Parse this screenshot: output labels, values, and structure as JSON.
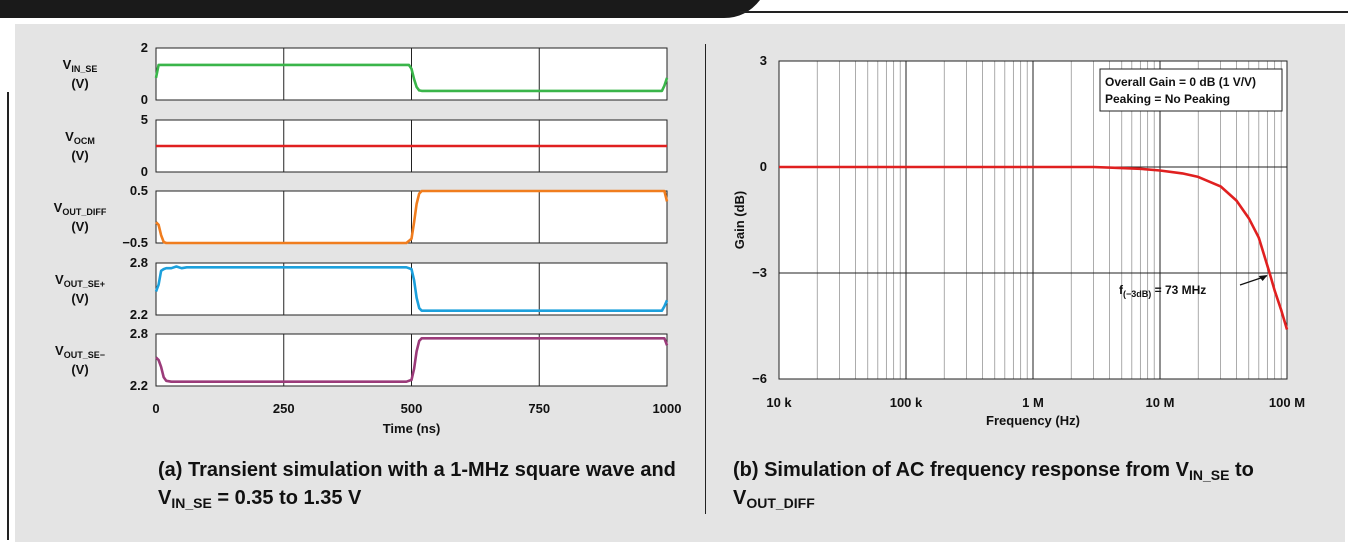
{
  "chart_data": [
    {
      "type": "line",
      "panel": "a",
      "xlabel": "Time (ns)",
      "xlim": [
        0,
        1000
      ],
      "xticks": [
        "0",
        "250",
        "500",
        "750",
        "1000"
      ],
      "xtick_values": [
        0,
        250,
        500,
        750,
        1000
      ],
      "subplots": [
        {
          "name": "V_IN_SE",
          "label_main": "V",
          "label_sub": "IN_SE",
          "unit": "(V)",
          "color": "#3ab54a",
          "ylim": [
            0,
            2
          ],
          "yticks": [
            "0",
            "2"
          ],
          "ytick_values": [
            0,
            2
          ],
          "x": [
            0,
            5,
            10,
            20,
            60,
            100,
            150,
            200,
            250,
            300,
            350,
            400,
            450,
            495,
            500,
            505,
            510,
            515,
            520,
            600,
            700,
            800,
            900,
            990,
            995,
            1000
          ],
          "y": [
            0.85,
            1.35,
            1.35,
            1.35,
            1.35,
            1.35,
            1.35,
            1.35,
            1.35,
            1.35,
            1.35,
            1.35,
            1.35,
            1.35,
            1.2,
            0.8,
            0.5,
            0.37,
            0.35,
            0.35,
            0.35,
            0.35,
            0.35,
            0.35,
            0.55,
            0.85
          ]
        },
        {
          "name": "V_OCM",
          "label_main": "V",
          "label_sub": "OCM",
          "unit": "(V)",
          "color": "#e02020",
          "ylim": [
            0,
            5
          ],
          "yticks": [
            "0",
            "5"
          ],
          "ytick_values": [
            0,
            5
          ],
          "x": [
            0,
            1000
          ],
          "y": [
            2.5,
            2.5
          ]
        },
        {
          "name": "V_OUT_DIFF",
          "label_main": "V",
          "label_sub": "OUT_DIFF",
          "unit": "(V)",
          "color": "#f07d1e",
          "ylim": [
            -0.5,
            0.5
          ],
          "yticks": [
            "−0.5",
            "0.5"
          ],
          "ytick_values": [
            -0.5,
            0.5
          ],
          "x": [
            0,
            5,
            10,
            15,
            20,
            30,
            100,
            200,
            300,
            400,
            490,
            500,
            505,
            510,
            515,
            520,
            530,
            600,
            700,
            800,
            900,
            995,
            1000
          ],
          "y": [
            -0.1,
            -0.15,
            -0.35,
            -0.48,
            -0.5,
            -0.5,
            -0.5,
            -0.5,
            -0.5,
            -0.5,
            -0.5,
            -0.42,
            -0.1,
            0.25,
            0.45,
            0.5,
            0.5,
            0.5,
            0.5,
            0.5,
            0.5,
            0.5,
            0.3
          ]
        },
        {
          "name": "V_OUT_SE+",
          "label_main": "V",
          "label_sub": "OUT_SE+",
          "unit": "(V)",
          "color": "#1ca0dc",
          "ylim": [
            2.2,
            2.8
          ],
          "yticks": [
            "2.2",
            "2.8"
          ],
          "ytick_values": [
            2.2,
            2.8
          ],
          "x": [
            0,
            5,
            10,
            15,
            20,
            30,
            40,
            50,
            60,
            100,
            200,
            300,
            400,
            490,
            500,
            505,
            510,
            515,
            520,
            530,
            600,
            700,
            800,
            900,
            990,
            995,
            1000
          ],
          "y": [
            2.47,
            2.55,
            2.71,
            2.73,
            2.74,
            2.74,
            2.76,
            2.74,
            2.75,
            2.75,
            2.75,
            2.75,
            2.75,
            2.75,
            2.73,
            2.6,
            2.4,
            2.28,
            2.25,
            2.25,
            2.25,
            2.25,
            2.25,
            2.25,
            2.25,
            2.3,
            2.37
          ]
        },
        {
          "name": "V_OUT_SE−",
          "label_main": "V",
          "label_sub": "OUT_SE−",
          "unit": "(V)",
          "color": "#9b3b7a",
          "ylim": [
            2.2,
            2.8
          ],
          "yticks": [
            "2.2",
            "2.8"
          ],
          "ytick_values": [
            2.2,
            2.8
          ],
          "x": [
            0,
            5,
            10,
            15,
            20,
            30,
            100,
            200,
            300,
            400,
            490,
            500,
            505,
            510,
            515,
            520,
            530,
            600,
            700,
            800,
            900,
            995,
            1000
          ],
          "y": [
            2.53,
            2.5,
            2.42,
            2.3,
            2.26,
            2.25,
            2.25,
            2.25,
            2.25,
            2.25,
            2.25,
            2.27,
            2.4,
            2.6,
            2.72,
            2.75,
            2.75,
            2.75,
            2.75,
            2.75,
            2.75,
            2.75,
            2.67
          ]
        }
      ]
    },
    {
      "type": "line",
      "panel": "b",
      "xscale": "log",
      "xlabel": "Frequency (Hz)",
      "ylabel": "Gain (dB)",
      "xlim": [
        10000,
        100000000
      ],
      "ylim": [
        -6,
        3
      ],
      "xticks": [
        "10 k",
        "100 k",
        "1 M",
        "10 M",
        "100 M"
      ],
      "xtick_values": [
        10000,
        100000,
        1000000,
        10000000,
        100000000
      ],
      "yticks": [
        "3",
        "0",
        "−3",
        "−6"
      ],
      "ytick_values": [
        3,
        0,
        -3,
        -6
      ],
      "series": [
        {
          "color": "#e02020",
          "x": [
            10000,
            100000,
            1000000,
            3000000,
            5000000,
            7000000,
            10000000,
            15000000,
            20000000,
            30000000,
            40000000,
            50000000,
            60000000,
            73000000,
            80000000,
            90000000,
            100000000
          ],
          "y": [
            0,
            0,
            0,
            0,
            -0.03,
            -0.05,
            -0.1,
            -0.18,
            -0.28,
            -0.55,
            -0.95,
            -1.45,
            -2.0,
            -3.0,
            -3.5,
            -4.05,
            -4.6
          ]
        }
      ],
      "annotations": {
        "box_line1": "Overall Gain = 0 dB (1 V/V)",
        "box_line2": "Peaking = No Peaking",
        "f3db_main": "f",
        "f3db_sub": "(−3dB)",
        "f3db_value": " = 73 MHz",
        "f3db_x": 73000000,
        "f3db_y": -3
      }
    }
  ],
  "captions": {
    "a_line1": "(a) Transient simulation with a 1-MHz square wave and",
    "a_line2_main": "V",
    "a_line2_sub": "IN_SE",
    "a_line2_rest": " = 0.35 to 1.35 V",
    "b_line1_main": "(b) Simulation of AC frequency response from V",
    "b_line1_sub": "IN_SE",
    "b_line1_rest": " to",
    "b_line2_main": "V",
    "b_line2_sub": "OUT_DIFF"
  }
}
